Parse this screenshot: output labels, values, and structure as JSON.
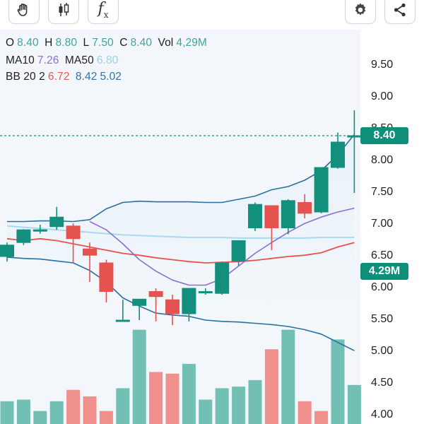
{
  "toolbar": {
    "left_buttons": [
      "hand-icon",
      "candlestick-icon",
      "function-icon"
    ],
    "right_buttons": [
      "gear-icon",
      "share-icon"
    ],
    "fx_label": "f",
    "fx_sub": "x"
  },
  "legend": {
    "ohlc": {
      "o_label": "O",
      "o": "8.40",
      "h_label": "H",
      "h": "8.80",
      "l_label": "L",
      "l": "7.50",
      "c_label": "C",
      "c": "8.40",
      "vol_label": "Vol",
      "vol": "4,29M"
    },
    "ma": {
      "ma10_label": "MA10",
      "ma10": "7.26",
      "ma50_label": "MA50",
      "ma50": "6.80"
    },
    "bb": {
      "label": "BB 20 2",
      "mid": "6.72",
      "upper": "8.42",
      "lower": "5.02"
    }
  },
  "price_tag": "8.40",
  "volume_tag": "4.29M",
  "colors": {
    "up": "#138f7d",
    "down": "#e4534f",
    "vol_up": "#72c0b4",
    "vol_down": "#f0908d",
    "bb_band": "#2a6f9e",
    "bb_mid": "#e4534f",
    "ma10": "#8a6fd1",
    "ma50": "#a9d8ef",
    "price_line": "#1f8f86"
  },
  "chart_data": {
    "type": "candlestick",
    "y_ticks": [
      "9.50",
      "9.00",
      "8.50",
      "8.00",
      "7.50",
      "7.00",
      "6.50",
      "6.00",
      "5.50",
      "5.00",
      "4.50",
      "4.00"
    ],
    "ylim": [
      4.0,
      9.75
    ],
    "last_price": 8.4,
    "candles": [
      {
        "o": 6.5,
        "h": 6.72,
        "l": 6.42,
        "c": 6.68
      },
      {
        "o": 6.72,
        "h": 6.93,
        "l": 6.68,
        "c": 6.92
      },
      {
        "o": 6.92,
        "h": 7.0,
        "l": 6.86,
        "c": 6.92
      },
      {
        "o": 6.97,
        "h": 7.28,
        "l": 6.92,
        "c": 7.12
      },
      {
        "o": 6.98,
        "h": 7.02,
        "l": 6.4,
        "c": 6.78
      },
      {
        "o": 6.62,
        "h": 6.72,
        "l": 6.1,
        "c": 6.52
      },
      {
        "o": 6.4,
        "h": 6.45,
        "l": 5.78,
        "c": 5.95
      },
      {
        "o": 5.5,
        "h": 5.82,
        "l": 5.5,
        "c": 5.5
      },
      {
        "o": 5.73,
        "h": 5.83,
        "l": 5.5,
        "c": 5.83
      },
      {
        "o": 5.95,
        "h": 6.0,
        "l": 5.48,
        "c": 5.87
      },
      {
        "o": 5.82,
        "h": 5.9,
        "l": 5.42,
        "c": 5.6
      },
      {
        "o": 5.6,
        "h": 6.0,
        "l": 5.48,
        "c": 6.0
      },
      {
        "o": 5.95,
        "h": 6.0,
        "l": 5.9,
        "c": 5.95
      },
      {
        "o": 5.92,
        "h": 6.42,
        "l": 5.9,
        "c": 6.4
      },
      {
        "o": 6.43,
        "h": 6.75,
        "l": 6.35,
        "c": 6.75
      },
      {
        "o": 6.95,
        "h": 7.35,
        "l": 6.9,
        "c": 7.32
      },
      {
        "o": 7.3,
        "h": 7.3,
        "l": 6.6,
        "c": 6.95
      },
      {
        "o": 6.95,
        "h": 7.4,
        "l": 6.85,
        "c": 7.38
      },
      {
        "o": 7.35,
        "h": 7.48,
        "l": 7.1,
        "c": 7.18
      },
      {
        "o": 7.2,
        "h": 7.9,
        "l": 7.18,
        "c": 7.9
      },
      {
        "o": 7.9,
        "h": 8.45,
        "l": 7.88,
        "c": 8.3
      },
      {
        "o": 8.4,
        "h": 8.8,
        "l": 7.5,
        "c": 8.4
      }
    ],
    "volume_bars_rel": [
      0.14,
      0.15,
      0.08,
      0.14,
      0.21,
      0.17,
      0.08,
      0.22,
      0.58,
      0.32,
      0.31,
      0.37,
      0.15,
      0.22,
      0.23,
      0.27,
      0.46,
      0.58,
      0.14,
      0.08,
      0.52,
      0.24
    ],
    "volume_up": [
      true,
      true,
      true,
      true,
      false,
      false,
      false,
      true,
      true,
      false,
      false,
      true,
      true,
      true,
      true,
      true,
      false,
      true,
      false,
      false,
      true,
      true
    ],
    "last_volume": "4.29M",
    "ma10": [
      null,
      null,
      null,
      null,
      null,
      7.05,
      6.92,
      6.7,
      6.45,
      6.27,
      6.13,
      6.05,
      6.05,
      6.15,
      6.35,
      6.55,
      6.72,
      6.88,
      7.02,
      7.12,
      7.2,
      7.26
    ],
    "ma50": [
      6.98,
      6.96,
      6.94,
      6.92,
      6.9,
      6.88,
      6.86,
      6.84,
      6.83,
      6.82,
      6.81,
      6.8,
      6.8,
      6.8,
      6.79,
      6.79,
      6.79,
      6.79,
      6.79,
      6.8,
      6.8,
      6.8
    ],
    "bb_upper": [
      7.05,
      7.05,
      7.06,
      7.06,
      7.05,
      7.08,
      7.25,
      7.35,
      7.37,
      7.36,
      7.36,
      7.36,
      7.35,
      7.35,
      7.4,
      7.45,
      7.55,
      7.6,
      7.7,
      7.85,
      8.1,
      8.42
    ],
    "bb_mid": [
      6.78,
      6.75,
      6.78,
      6.75,
      6.7,
      6.65,
      6.6,
      6.55,
      6.52,
      6.48,
      6.45,
      6.42,
      6.4,
      6.41,
      6.42,
      6.44,
      6.47,
      6.5,
      6.52,
      6.56,
      6.65,
      6.72
    ],
    "bb_lower": [
      6.49,
      6.47,
      6.46,
      6.43,
      6.4,
      6.28,
      6.1,
      5.85,
      5.72,
      5.61,
      5.58,
      5.56,
      5.5,
      5.48,
      5.47,
      5.45,
      5.43,
      5.4,
      5.35,
      5.28,
      5.15,
      5.02
    ]
  }
}
